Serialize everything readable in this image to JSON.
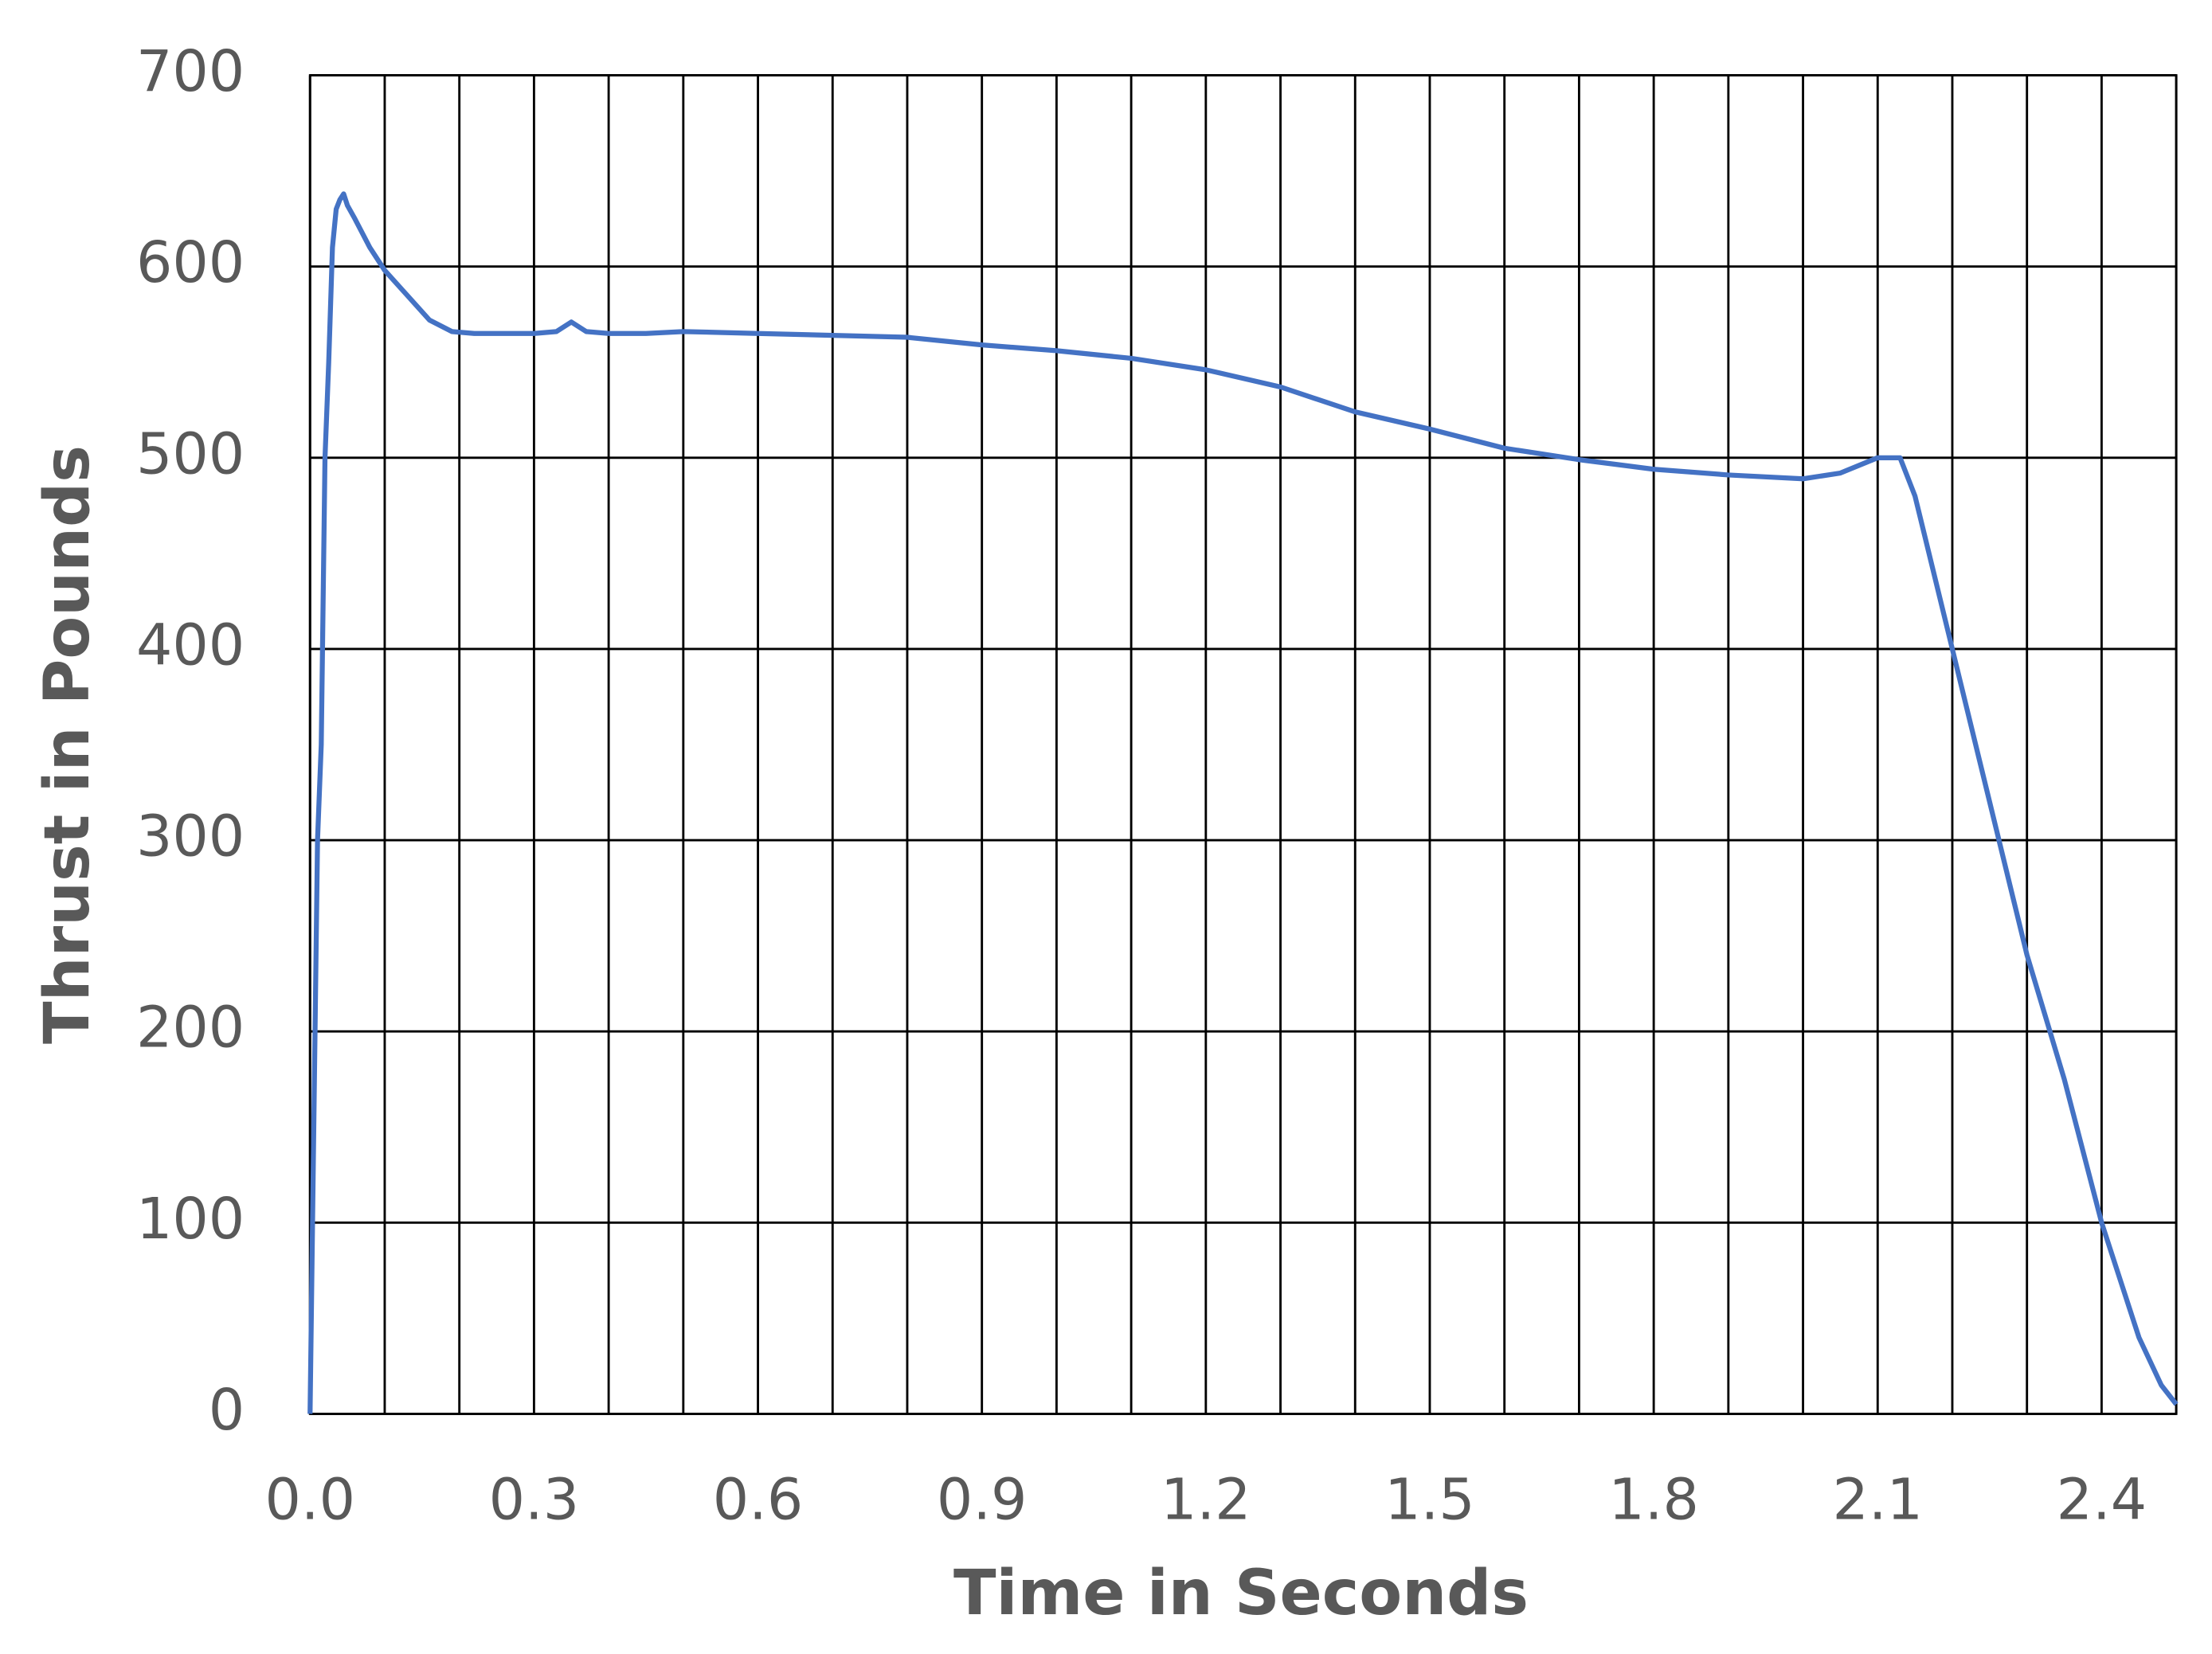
{
  "chart_data": {
    "type": "line",
    "x_label": "Time in Seconds",
    "y_label": "Thrust in Pounds",
    "x": [
      0,
      0.005,
      0.01,
      0.015,
      0.02,
      0.025,
      0.03,
      0.035,
      0.04,
      0.045,
      0.05,
      0.06,
      0.08,
      0.1,
      0.13,
      0.16,
      0.19,
      0.22,
      0.26,
      0.3,
      0.33,
      0.35,
      0.37,
      0.4,
      0.45,
      0.5,
      0.6,
      0.7,
      0.8,
      0.9,
      1.0,
      1.1,
      1.2,
      1.3,
      1.4,
      1.5,
      1.6,
      1.7,
      1.8,
      1.9,
      2.0,
      2.05,
      2.1,
      2.13,
      2.15,
      2.2,
      2.25,
      2.3,
      2.35,
      2.4,
      2.45,
      2.48,
      2.5
    ],
    "series": [
      {
        "color": "#4472c4",
        "values": [
          0,
          150,
          300,
          350,
          500,
          550,
          610,
          630,
          635,
          638,
          632,
          625,
          610,
          598,
          585,
          572,
          566,
          565,
          565,
          565,
          566,
          571,
          566,
          565,
          565,
          566,
          565,
          564,
          563,
          559,
          556,
          552,
          546,
          537,
          524,
          515,
          505,
          499,
          494,
          491,
          489,
          492,
          500,
          500,
          480,
          400,
          320,
          240,
          175,
          100,
          40,
          15,
          5
        ]
      }
    ],
    "xlim": [
      0,
      2.5
    ],
    "ylim": [
      0,
      700
    ],
    "xticks": [
      {
        "value": 0,
        "label": "0.0"
      },
      0.3,
      0.6,
      0.9,
      1.2,
      1.5,
      1.8,
      2.1,
      2.4
    ],
    "x_minor_grid": [
      0.1,
      0.2,
      0.4,
      0.5,
      0.7,
      0.8,
      1.0,
      1.1,
      1.3,
      1.4,
      1.6,
      1.7,
      1.9,
      2.0,
      2.2,
      2.3,
      2.5
    ],
    "yticks": [
      0,
      100,
      200,
      300,
      400,
      500,
      600,
      700
    ],
    "grid": true
  }
}
